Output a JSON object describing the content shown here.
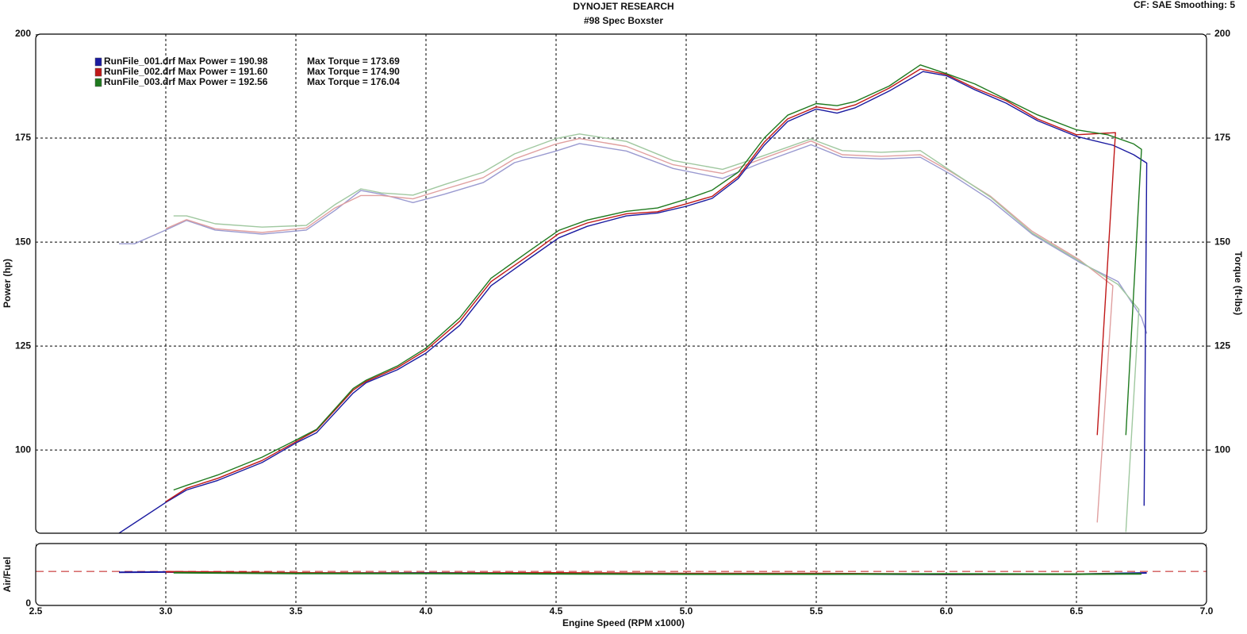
{
  "chart_data": [
    {
      "type": "line",
      "title": "DYNOJET RESEARCH",
      "subtitle": "#98 Spec Boxster",
      "annotation": "CF: SAE  Smoothing: 5",
      "ylabel": "Power (hp)",
      "y2label": "Torque (ft-lbs)",
      "xlim": [
        2.5,
        7
      ],
      "xticks": [
        2.5,
        {
          "value": 3,
          "label": "3.0"
        },
        3.5,
        {
          "value": 4,
          "label": "4.0"
        },
        4.5,
        {
          "value": 5,
          "label": "5.0"
        },
        5.5,
        {
          "value": 6,
          "label": "6.0"
        },
        6.5,
        {
          "value": 7,
          "label": "7.0"
        }
      ],
      "ylim": [
        80,
        200
      ],
      "yticks": [
        100,
        125,
        150,
        175,
        200
      ],
      "y2lim": [
        80,
        200
      ],
      "y2ticks": [
        100,
        125,
        150,
        175,
        200
      ],
      "grid": true,
      "legend": [
        {
          "color": "#1a1aa0",
          "power_label": "RunFile_001.drf Max Power = 190.98",
          "torque_label": "Max Torque = 173.69"
        },
        {
          "color": "#c01818",
          "power_label": "RunFile_002.drf Max Power = 191.60",
          "torque_label": "Max Torque = 174.90"
        },
        {
          "color": "#1f7a1f",
          "power_label": "RunFile_003.drf Max Power = 192.56",
          "torque_label": "Max Torque = 176.04"
        }
      ],
      "series": [
        {
          "color": "#9a9ad0",
          "axis": "y2",
          "x": [
            2.82,
            2.88,
            3.0,
            3.08,
            3.19,
            3.37,
            3.54,
            3.65,
            3.75,
            3.83,
            3.95,
            4.07,
            4.22,
            4.34,
            4.5,
            4.59,
            4.77,
            4.95,
            5.14,
            5.29,
            5.48,
            5.6,
            5.75,
            5.9,
            6.02,
            6.17,
            6.33,
            6.51,
            6.66,
            6.75,
            6.77
          ],
          "values": [
            149.6,
            149.6,
            152.9,
            155.2,
            152.9,
            151.9,
            152.9,
            157.6,
            162.4,
            161.5,
            159.5,
            161.5,
            164.3,
            169.1,
            171.9,
            173.7,
            171.9,
            167.7,
            165.3,
            169.1,
            173.4,
            170.4,
            170,
            170.4,
            166.2,
            160.1,
            151.9,
            145.2,
            140.5,
            131.9,
            128
          ]
        },
        {
          "color": "#e0a0a0",
          "axis": "y2",
          "x": [
            3.0,
            3.08,
            3.19,
            3.37,
            3.54,
            3.65,
            3.75,
            3.83,
            3.95,
            4.07,
            4.22,
            4.34,
            4.5,
            4.59,
            4.77,
            4.95,
            5.14,
            5.29,
            5.48,
            5.6,
            5.75,
            5.9,
            6.02,
            6.17,
            6.33,
            6.51,
            6.64,
            6.58
          ],
          "values": [
            153.2,
            155.4,
            153.2,
            152.3,
            153.4,
            158.2,
            161.2,
            161.2,
            160.4,
            162.7,
            165.5,
            170,
            173.6,
            174.9,
            173,
            168.6,
            166.5,
            170,
            174.3,
            171,
            170.6,
            171,
            166.8,
            161,
            152.6,
            145.8,
            139.5,
            82.6
          ]
        },
        {
          "color": "#a0c8a0",
          "axis": "y2",
          "x": [
            3.03,
            3.08,
            3.19,
            3.37,
            3.54,
            3.65,
            3.75,
            3.83,
            3.95,
            4.07,
            4.22,
            4.34,
            4.5,
            4.59,
            4.77,
            4.95,
            5.14,
            5.29,
            5.48,
            5.6,
            5.75,
            5.9,
            6.02,
            6.17,
            6.33,
            6.51,
            6.66,
            6.74,
            6.69
          ],
          "values": [
            156.3,
            156.3,
            154.4,
            153.6,
            154,
            159,
            162.8,
            161.8,
            161.3,
            163.8,
            166.8,
            171.2,
            174.9,
            176,
            174.2,
            169.6,
            167.5,
            170.6,
            174.8,
            172,
            171.6,
            172,
            167,
            160.8,
            152.2,
            145.5,
            139.8,
            133.8,
            80.3
          ]
        },
        {
          "color": "#1a1aa0",
          "axis": "y",
          "x": [
            2.82,
            3.0,
            3.08,
            3.2,
            3.37,
            3.5,
            3.58,
            3.72,
            3.77,
            3.89,
            4.0,
            4.13,
            4.25,
            4.4,
            4.51,
            4.62,
            4.77,
            4.89,
            5.0,
            5.1,
            5.2,
            5.3,
            5.39,
            5.5,
            5.58,
            5.65,
            5.78,
            5.91,
            6.0,
            6.11,
            6.23,
            6.35,
            6.5,
            6.64,
            6.72,
            6.77,
            6.76
          ],
          "values": [
            80,
            87.4,
            90.4,
            92.7,
            97,
            101.7,
            104.2,
            113.7,
            116.2,
            119.3,
            123.3,
            130,
            139.5,
            146.2,
            151,
            153.8,
            156.3,
            157,
            158.6,
            160.5,
            165.3,
            173.3,
            179,
            182,
            181,
            182.3,
            186.3,
            191,
            190,
            186.6,
            183.4,
            179.2,
            175.4,
            173.3,
            171,
            169,
            86.6
          ]
        },
        {
          "color": "#c01818",
          "axis": "y",
          "x": [
            3.0,
            3.08,
            3.2,
            3.37,
            3.5,
            3.58,
            3.72,
            3.77,
            3.89,
            4.0,
            4.13,
            4.25,
            4.4,
            4.51,
            4.62,
            4.77,
            4.89,
            5.0,
            5.1,
            5.2,
            5.3,
            5.39,
            5.5,
            5.58,
            5.65,
            5.78,
            5.9,
            6.0,
            6.11,
            6.23,
            6.35,
            6.5,
            6.65,
            6.58
          ],
          "values": [
            87.6,
            90.8,
            93.2,
            97.5,
            102,
            104.8,
            114.4,
            116.5,
            119.8,
            124,
            131,
            140.5,
            147,
            152,
            154.6,
            156.8,
            157.3,
            159.2,
            161,
            165.8,
            174,
            179.6,
            182.5,
            181.8,
            183,
            187,
            191.6,
            190.3,
            187,
            184,
            179.6,
            175.8,
            176.3,
            103.6
          ]
        },
        {
          "color": "#1f7a1f",
          "axis": "y",
          "x": [
            3.03,
            3.08,
            3.2,
            3.37,
            3.5,
            3.58,
            3.72,
            3.77,
            3.89,
            4.0,
            4.13,
            4.25,
            4.4,
            4.51,
            4.62,
            4.77,
            4.89,
            5.0,
            5.1,
            5.2,
            5.3,
            5.39,
            5.5,
            5.58,
            5.65,
            5.78,
            5.9,
            6.0,
            6.11,
            6.23,
            6.35,
            6.5,
            6.62,
            6.72,
            6.75,
            6.69
          ],
          "values": [
            90.4,
            91.5,
            94,
            98.3,
            102.4,
            105,
            114.8,
            116.8,
            120.2,
            124.5,
            131.8,
            141.3,
            148,
            152.8,
            155.3,
            157.4,
            158.2,
            160.3,
            162.5,
            166.8,
            175,
            180.5,
            183.3,
            182.8,
            183.8,
            187.5,
            192.6,
            190.5,
            188,
            184.3,
            180.6,
            177,
            175.8,
            173.6,
            172.3,
            103.6
          ]
        }
      ]
    },
    {
      "type": "line",
      "ylabel": "Air/Fuel",
      "xlabel": "Engine Speed (RPM x1000)",
      "xlim": [
        2.5,
        7
      ],
      "xticks": [
        2.5,
        {
          "value": 3,
          "label": "3.0"
        },
        3.5,
        {
          "value": 4,
          "label": "4.0"
        },
        4.5,
        {
          "value": 5,
          "label": "5.0"
        },
        5.5,
        {
          "value": 6,
          "label": "6.0"
        },
        6.5,
        {
          "value": 7,
          "label": "7.0"
        }
      ],
      "ylim": [
        0,
        20
      ],
      "yticks": [
        0
      ],
      "grid": true,
      "reference_line": {
        "value": 11,
        "color": "#c01818"
      },
      "series": [
        {
          "color": "#1a1aa0",
          "x": [
            2.82,
            3.0,
            3.5,
            4.0,
            4.5,
            5.0,
            5.5,
            6.0,
            6.5,
            6.77
          ],
          "values": [
            10.7,
            10.8,
            10.4,
            10.5,
            10.4,
            10.2,
            10.2,
            10.0,
            10.1,
            10.5
          ]
        },
        {
          "color": "#c01818",
          "x": [
            3.0,
            3.5,
            4.0,
            4.5,
            5.0,
            5.5,
            6.0,
            6.5,
            6.65
          ],
          "values": [
            10.9,
            10.5,
            10.4,
            10.5,
            10.3,
            10.3,
            10.1,
            10.1,
            10.2
          ]
        },
        {
          "color": "#1f7a1f",
          "x": [
            3.03,
            3.5,
            4.0,
            4.5,
            5.0,
            5.5,
            6.0,
            6.5,
            6.75
          ],
          "values": [
            10.6,
            10.3,
            10.3,
            10.2,
            10.1,
            10.1,
            10.2,
            10.1,
            10.2
          ]
        }
      ]
    }
  ]
}
